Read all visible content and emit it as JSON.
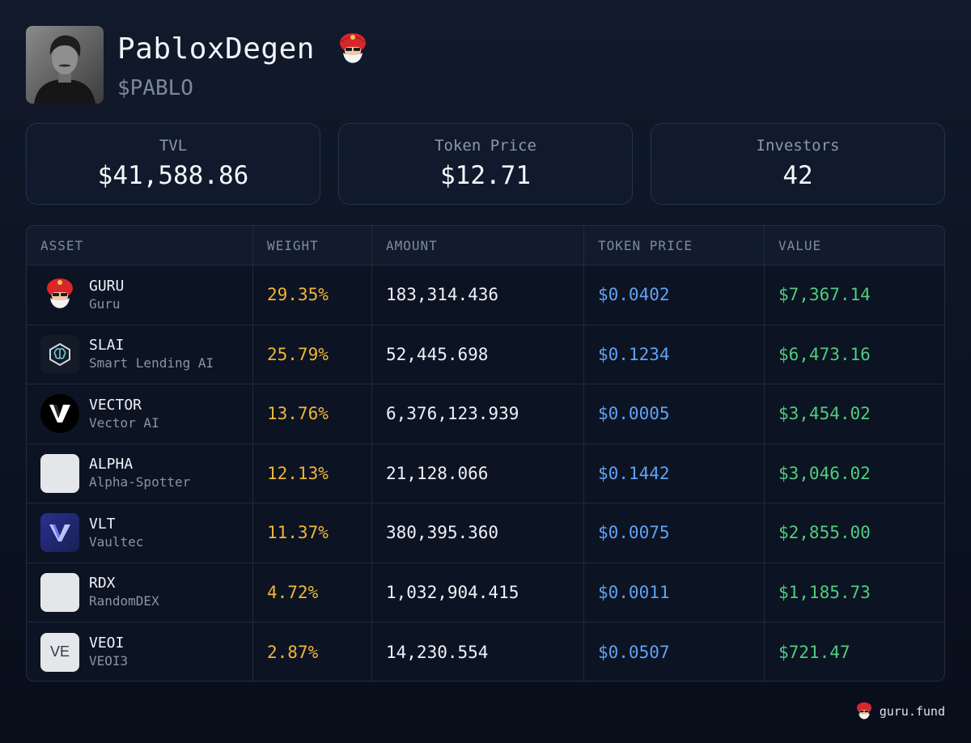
{
  "profile": {
    "name": "PabloxDegen",
    "ticker": "$PABLO"
  },
  "stats": [
    {
      "label": "TVL",
      "value": "$41,588.86"
    },
    {
      "label": "Token Price",
      "value": "$12.71"
    },
    {
      "label": "Investors",
      "value": "42"
    }
  ],
  "table": {
    "headers": [
      "ASSET",
      "WEIGHT",
      "AMOUNT",
      "TOKEN PRICE",
      "VALUE"
    ],
    "rows": [
      {
        "symbol": "GURU",
        "name": "Guru",
        "weight": "29.35%",
        "amount": "183,314.436",
        "price": "$0.0402",
        "value": "$7,367.14",
        "icon": "guru-turban-icon"
      },
      {
        "symbol": "SLAI",
        "name": "Smart Lending AI",
        "weight": "25.79%",
        "amount": "52,445.698",
        "price": "$0.1234",
        "value": "$6,473.16",
        "icon": "slai-brain-icon"
      },
      {
        "symbol": "VECTOR",
        "name": "Vector AI",
        "weight": "13.76%",
        "amount": "6,376,123.939",
        "price": "$0.0005",
        "value": "$3,454.02",
        "icon": "vector-v-icon"
      },
      {
        "symbol": "ALPHA",
        "name": "Alpha-Spotter",
        "weight": "12.13%",
        "amount": "21,128.066",
        "price": "$0.1442",
        "value": "$3,046.02",
        "icon": "placeholder-icon"
      },
      {
        "symbol": "VLT",
        "name": "Vaultec",
        "weight": "11.37%",
        "amount": "380,395.360",
        "price": "$0.0075",
        "value": "$2,855.00",
        "icon": "vaultec-v-icon"
      },
      {
        "symbol": "RDX",
        "name": "RandomDEX",
        "weight": "4.72%",
        "amount": "1,032,904.415",
        "price": "$0.0011",
        "value": "$1,185.73",
        "icon": "placeholder-icon"
      },
      {
        "symbol": "VEOI",
        "name": "VEOI3",
        "weight": "2.87%",
        "amount": "14,230.554",
        "price": "$0.0507",
        "value": "$721.47",
        "icon": "ve-text-icon",
        "icon_text": "VE"
      }
    ]
  },
  "footer": {
    "brand": "guru.fund"
  },
  "colors": {
    "weight": "#f2b53a",
    "price": "#5fa3f5",
    "value": "#4fcd7f",
    "guru_red": "#d9262b"
  }
}
